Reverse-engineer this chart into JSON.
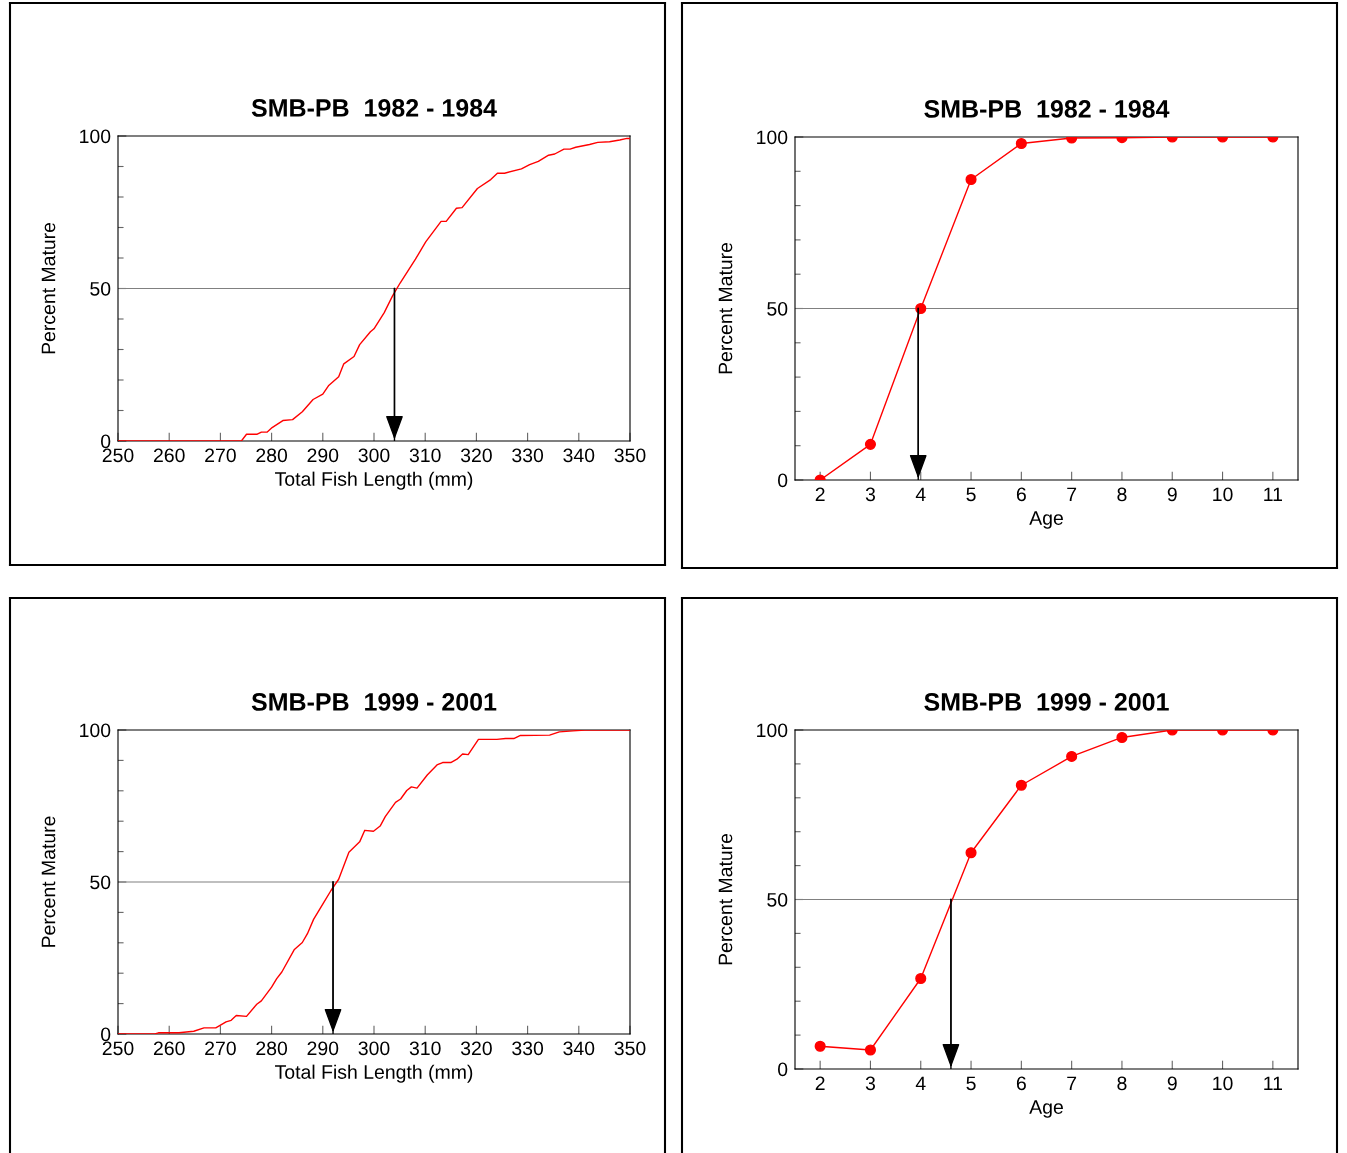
{
  "chart_data": [
    {
      "type": "line",
      "title": "SMB-PB  1982 - 1984",
      "xlabel": "Total Fish Length (mm)",
      "ylabel": "Percent Mature",
      "marker": "none",
      "line_style": "solid",
      "xlim": [
        250,
        350
      ],
      "ylim": [
        0,
        100
      ],
      "xticks": [
        250,
        260,
        270,
        280,
        290,
        300,
        310,
        320,
        330,
        340,
        350
      ],
      "yticks": [
        0,
        {
          "value": 10,
          "label": null
        },
        {
          "value": 20,
          "label": null
        },
        {
          "value": 30,
          "label": null
        },
        {
          "value": 40,
          "label": null
        },
        50,
        {
          "value": 60,
          "label": null
        },
        {
          "value": 70,
          "label": null
        },
        {
          "value": 80,
          "label": null
        },
        {
          "value": 90,
          "label": null
        },
        100
      ],
      "ref_lines": [
        {
          "axis": "y",
          "value": 50,
          "color": "#808080"
        },
        {
          "axis": "x",
          "value": 304,
          "color": "#000000"
        }
      ],
      "series": [
        {
          "color": "#ff0000",
          "x": [
            250,
            274.1,
            275.1,
            277.1,
            278.0,
            279.1,
            280.1,
            282.2,
            284.1,
            286.0,
            288.1,
            290.0,
            291.1,
            293.1,
            294.1,
            296.1,
            297.2,
            299.3,
            300.0,
            302.0,
            303.6,
            305.1,
            308.1,
            310.1,
            313.1,
            314.1,
            316.1,
            317.2,
            320.2,
            322.8,
            324.1,
            325.5,
            328.8,
            330.4,
            332.1,
            334.1,
            335.3,
            337.1,
            338.3,
            339.4,
            342.1,
            343.7,
            346.0,
            348.0,
            349.4,
            350
          ],
          "values": [
            0,
            0,
            2.2,
            2.2,
            2.9,
            2.9,
            4.4,
            6.7,
            7.0,
            9.6,
            13.6,
            15.4,
            18.1,
            21.1,
            25.3,
            27.7,
            31.6,
            35.8,
            36.8,
            42.1,
            47.5,
            51.8,
            59.6,
            65.3,
            72.0,
            72.0,
            76.3,
            76.5,
            82.8,
            85.7,
            87.8,
            87.8,
            89.2,
            90.6,
            91.7,
            93.7,
            94.1,
            95.7,
            95.7,
            96.3,
            97.2,
            97.9,
            98.1,
            98.7,
            99.2,
            99.2
          ]
        }
      ]
    },
    {
      "type": "line",
      "title": "SMB-PB  1982 - 1984",
      "xlabel": "Age",
      "ylabel": "Percent Mature",
      "marker": "circle",
      "line_style": "solid",
      "xlim": [
        1.5,
        11.5
      ],
      "ylim": [
        0,
        100
      ],
      "xticks": [
        2,
        3,
        4,
        5,
        6,
        7,
        8,
        9,
        10,
        11
      ],
      "yticks": [
        0,
        {
          "value": 10,
          "label": null
        },
        {
          "value": 20,
          "label": null
        },
        {
          "value": 30,
          "label": null
        },
        {
          "value": 40,
          "label": null
        },
        50,
        {
          "value": 60,
          "label": null
        },
        {
          "value": 70,
          "label": null
        },
        {
          "value": 80,
          "label": null
        },
        {
          "value": 90,
          "label": null
        },
        100
      ],
      "ref_lines": [
        {
          "axis": "y",
          "value": 50,
          "color": "#808080"
        },
        {
          "axis": "x",
          "value": 3.95,
          "color": "#000000"
        }
      ],
      "series": [
        {
          "color": "#ff0000",
          "x": [
            2,
            3,
            4,
            5,
            6,
            7,
            8,
            9,
            10,
            11
          ],
          "values": [
            0,
            10.4,
            50,
            87.6,
            98.1,
            99.7,
            99.8,
            100,
            100,
            100
          ]
        }
      ]
    },
    {
      "type": "line",
      "title": "SMB-PB  1999 - 2001",
      "xlabel": "Total Fish Length (mm)",
      "ylabel": "Percent Mature",
      "marker": "none",
      "line_style": "solid",
      "xlim": [
        250,
        350
      ],
      "ylim": [
        0,
        100
      ],
      "xticks": [
        250,
        260,
        270,
        280,
        290,
        300,
        310,
        320,
        330,
        340,
        350
      ],
      "yticks": [
        0,
        {
          "value": 10,
          "label": null
        },
        {
          "value": 20,
          "label": null
        },
        {
          "value": 30,
          "label": null
        },
        {
          "value": 40,
          "label": null
        },
        50,
        {
          "value": 60,
          "label": null
        },
        {
          "value": 70,
          "label": null
        },
        {
          "value": 80,
          "label": null
        },
        {
          "value": 90,
          "label": null
        },
        100
      ],
      "ref_lines": [
        {
          "axis": "y",
          "value": 50,
          "color": "#808080"
        },
        {
          "axis": "x",
          "value": 292,
          "color": "#000000"
        }
      ],
      "series": [
        {
          "color": "#ff0000",
          "x": [
            250,
            257.2,
            257.9,
            261.9,
            264.8,
            266.8,
            269.1,
            271.1,
            272.1,
            273.1,
            275.1,
            277.1,
            278.0,
            280.0,
            281.0,
            282.0,
            284.4,
            286.0,
            287.0,
            288.2,
            290.2,
            291.6,
            293.1,
            295.1,
            297.2,
            298.2,
            299.9,
            301.2,
            302.2,
            304.2,
            305.2,
            306.4,
            307.3,
            308.4,
            310.4,
            312.3,
            313.4,
            315.0,
            316.2,
            317.3,
            318.4,
            320.4,
            324.0,
            325.7,
            327.3,
            328.6,
            334.3,
            336.2,
            338.9,
            341.2,
            350
          ],
          "values": [
            0,
            0,
            0.4,
            0.4,
            0.9,
            2.0,
            2.0,
            4.0,
            4.5,
            6.1,
            5.8,
            9.8,
            10.9,
            15.4,
            18.2,
            20.4,
            27.7,
            30.1,
            33.0,
            37.7,
            43.3,
            47.2,
            50.9,
            59.8,
            63.2,
            67.0,
            66.7,
            68.4,
            71.5,
            76.2,
            77.3,
            80.1,
            81.3,
            80.9,
            85.2,
            88.5,
            89.3,
            89.3,
            90.4,
            92.1,
            91.9,
            96.9,
            96.9,
            97.2,
            97.2,
            98.2,
            98.3,
            99.4,
            99.7,
            100,
            100
          ]
        }
      ]
    },
    {
      "type": "line",
      "title": "SMB-PB  1999 - 2001",
      "xlabel": "Age",
      "ylabel": "Percent Mature",
      "marker": "circle",
      "line_style": "solid",
      "xlim": [
        1.5,
        11.5
      ],
      "ylim": [
        0,
        100
      ],
      "xticks": [
        2,
        3,
        4,
        5,
        6,
        7,
        8,
        9,
        10,
        11
      ],
      "yticks": [
        0,
        {
          "value": 10,
          "label": null
        },
        {
          "value": 20,
          "label": null
        },
        {
          "value": 30,
          "label": null
        },
        {
          "value": 40,
          "label": null
        },
        50,
        {
          "value": 60,
          "label": null
        },
        {
          "value": 70,
          "label": null
        },
        {
          "value": 80,
          "label": null
        },
        {
          "value": 90,
          "label": null
        },
        100
      ],
      "ref_lines": [
        {
          "axis": "y",
          "value": 50,
          "color": "#808080"
        },
        {
          "axis": "x",
          "value": 4.6,
          "color": "#000000"
        }
      ],
      "series": [
        {
          "color": "#ff0000",
          "x": [
            2,
            3,
            4,
            5,
            6,
            7,
            8,
            9,
            10,
            11
          ],
          "values": [
            6.7,
            5.6,
            26.7,
            63.8,
            83.7,
            92.2,
            97.8,
            100,
            100,
            100
          ]
        }
      ]
    }
  ]
}
